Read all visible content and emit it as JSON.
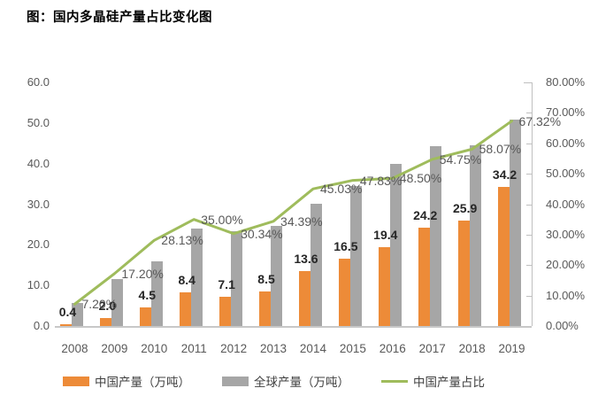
{
  "chart_data": {
    "type": "bar",
    "combo": "bar+line",
    "title": "图：国内多晶硅产量占比变化图",
    "categories": [
      "2008",
      "2009",
      "2010",
      "2011",
      "2012",
      "2013",
      "2014",
      "2015",
      "2016",
      "2017",
      "2018",
      "2019"
    ],
    "series": [
      {
        "name": "中国产量（万吨）",
        "type": "bar",
        "axis": "left",
        "color": "#ED8B38",
        "values": [
          0.4,
          2.0,
          4.5,
          8.4,
          7.1,
          8.5,
          13.6,
          16.5,
          19.4,
          24.2,
          25.9,
          34.2
        ],
        "labels": [
          "0.4",
          "2.0",
          "4.5",
          "8.4",
          "7.1",
          "8.5",
          "13.6",
          "16.5",
          "19.4",
          "24.2",
          "25.9",
          "34.2"
        ]
      },
      {
        "name": "全球产量（万吨）",
        "type": "bar",
        "axis": "left",
        "color": "#A6A6A6",
        "values": [
          5.6,
          11.6,
          16.0,
          24.0,
          23.4,
          24.7,
          30.2,
          34.5,
          40.0,
          44.2,
          44.6,
          50.8
        ]
      },
      {
        "name": "中国产量占比",
        "type": "line",
        "axis": "right",
        "color": "#9FBC5C",
        "values": [
          7.2,
          17.2,
          28.13,
          35.0,
          30.34,
          34.39,
          45.03,
          47.83,
          48.5,
          54.75,
          58.07,
          67.32
        ],
        "labels": [
          "7.20%",
          "17.20%",
          "28.13%",
          "35.00%",
          "30.34%",
          "34.39%",
          "45.03%",
          "47.83%",
          "48.50%",
          "54.75%",
          "58.07%",
          "67.32%"
        ]
      }
    ],
    "left_axis": {
      "min": 0,
      "max": 60,
      "step": 10,
      "tick_labels": [
        "0.0",
        "10.0",
        "20.0",
        "30.0",
        "40.0",
        "50.0",
        "60.0"
      ]
    },
    "right_axis": {
      "min": 0,
      "max": 80,
      "step": 10,
      "tick_labels": [
        "0.00%",
        "10.00%",
        "20.00%",
        "30.00%",
        "40.00%",
        "50.00%",
        "60.00%",
        "70.00%",
        "80.00%"
      ]
    },
    "grid": "off",
    "legend_position": "bottom",
    "colors": {
      "china_bar": "#ED8B38",
      "global_bar": "#A6A6A6",
      "share_line": "#9FBC5C",
      "axis_line": "#BFBFBF",
      "axis_text": "#595959",
      "value_label": "#262626"
    }
  }
}
